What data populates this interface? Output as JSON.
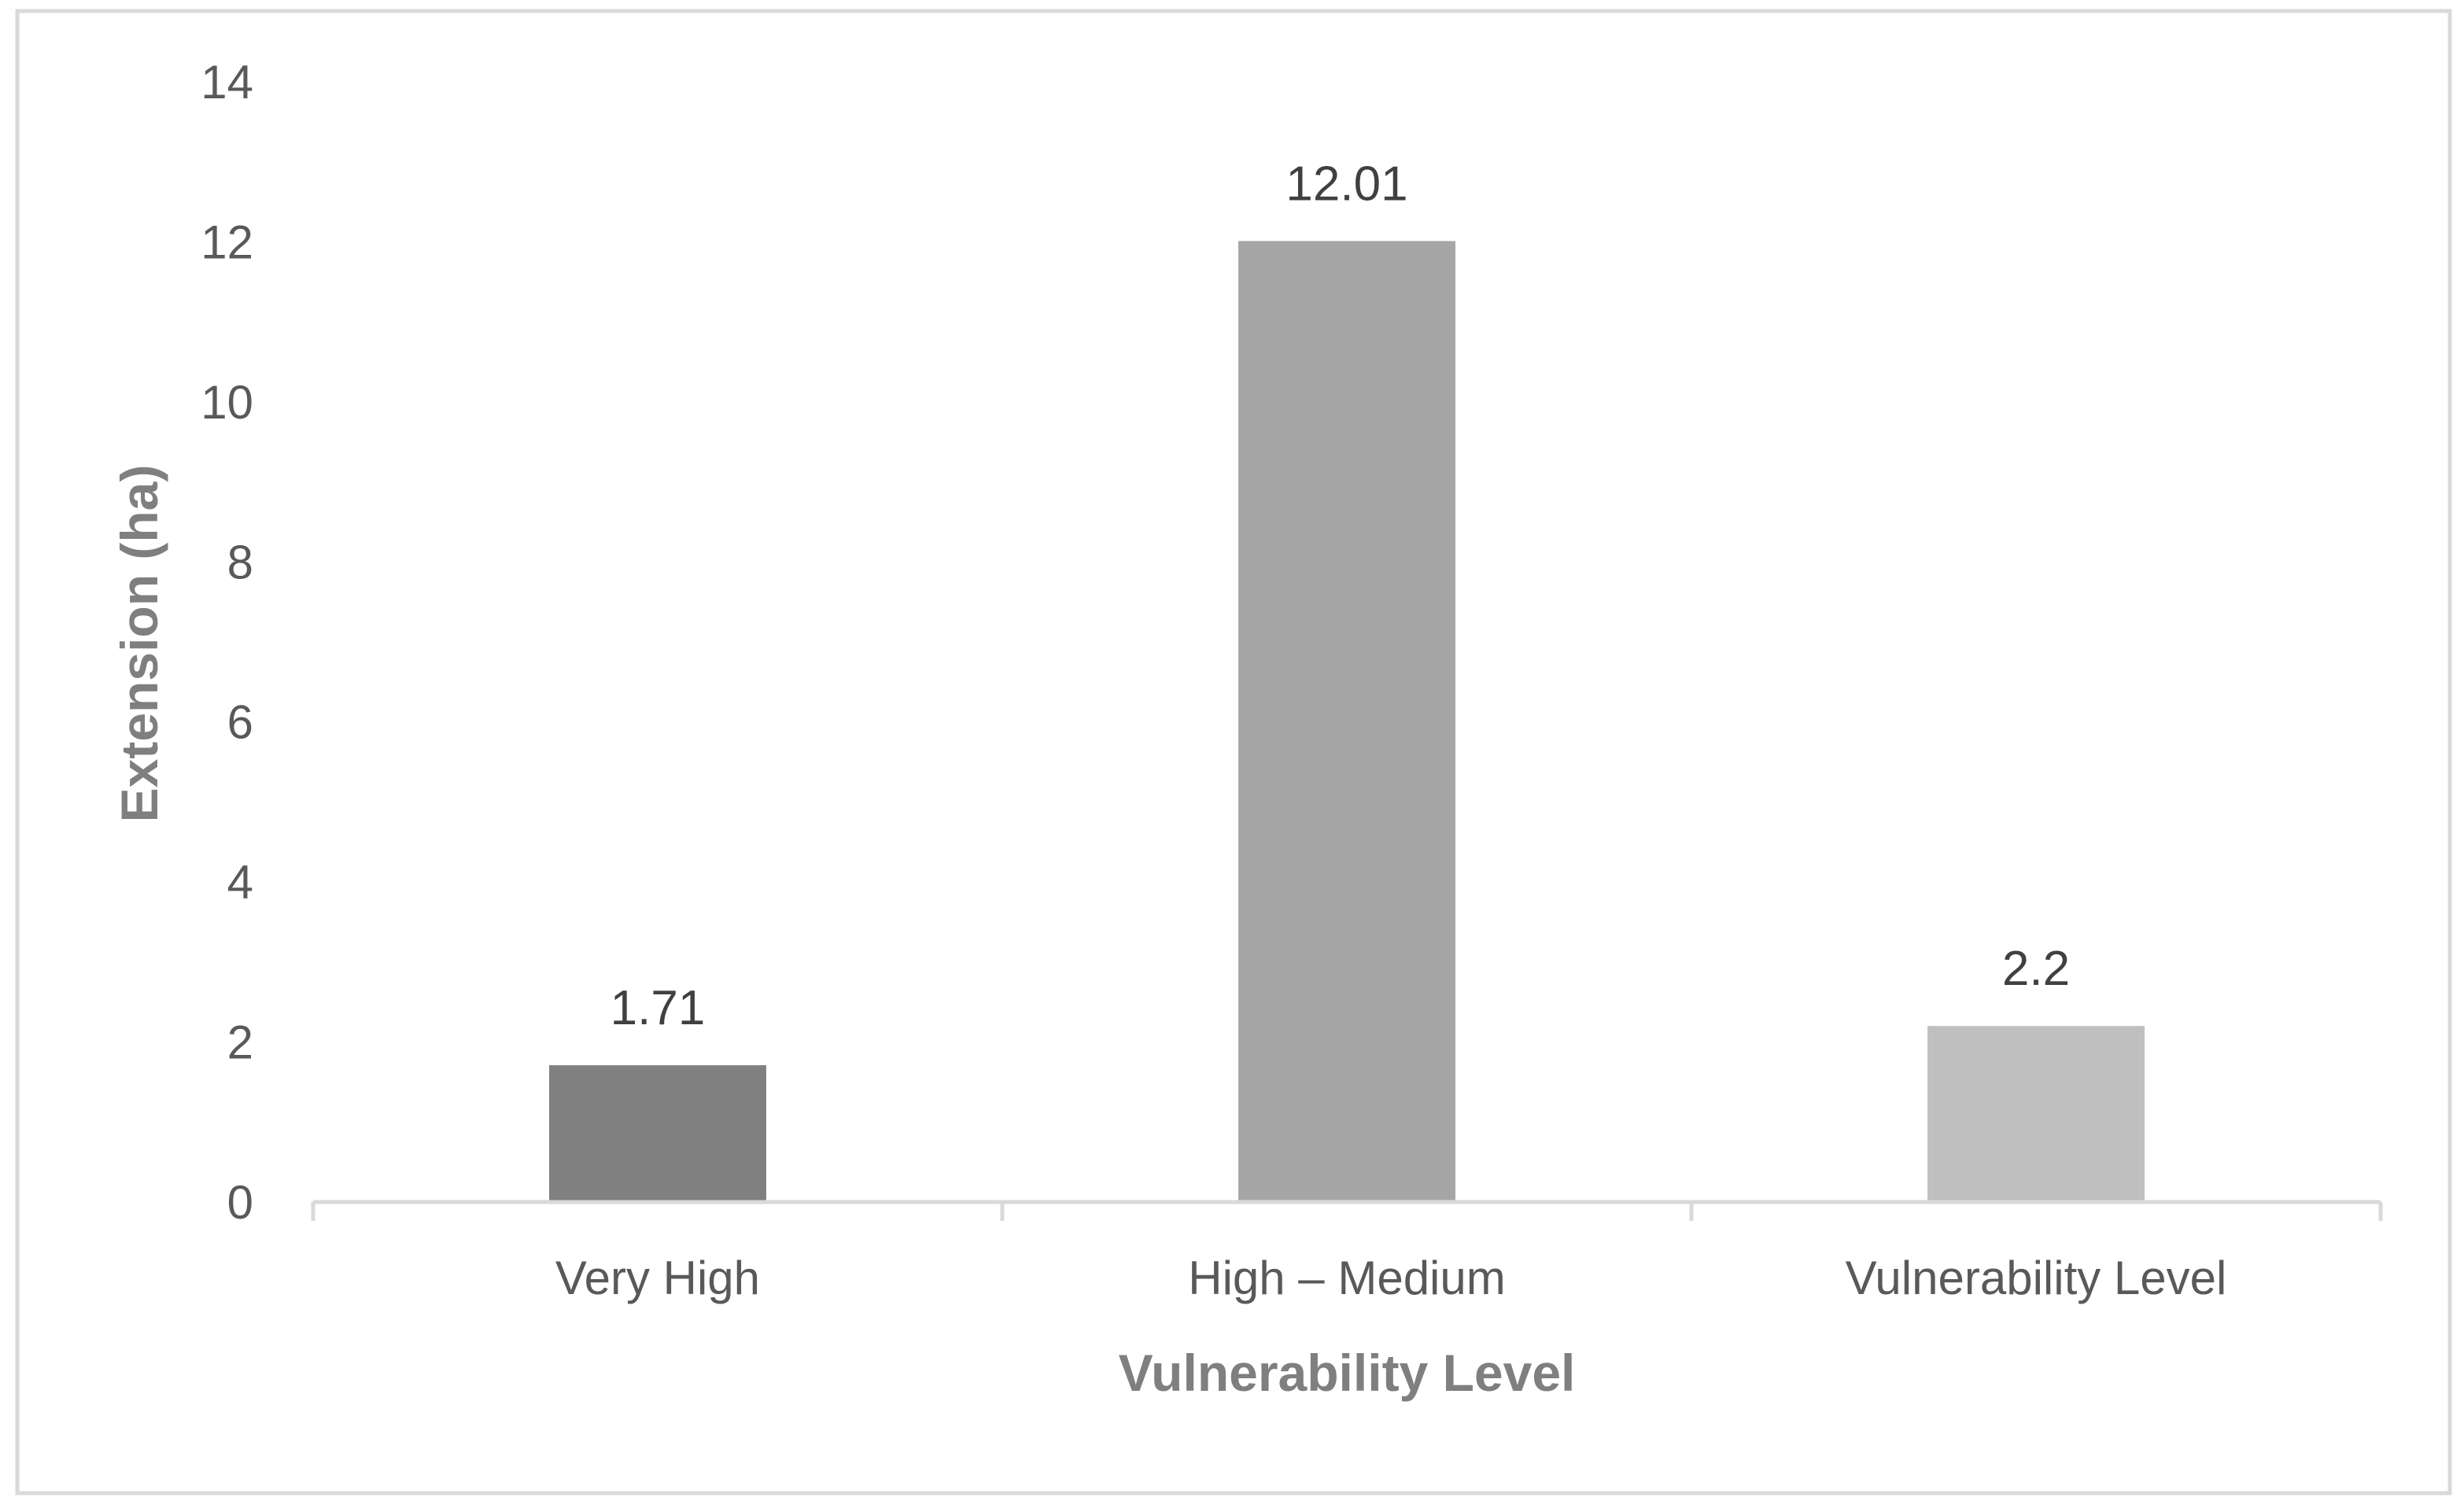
{
  "chart_data": {
    "type": "bar",
    "title": "",
    "xlabel": "Vulnerability Level",
    "ylabel": "Extension (ha)",
    "categories": [
      "Very High",
      "High – Medium",
      "Vulnerability Level"
    ],
    "values": [
      1.71,
      12.01,
      2.2
    ],
    "value_labels": [
      "1.71",
      "12.01",
      "2.2"
    ],
    "bar_colors": [
      "#808080",
      "#a6a6a6",
      "#bfbfbf"
    ],
    "ylim": [
      0,
      14
    ],
    "yticks": [
      0,
      2,
      4,
      6,
      8,
      10,
      12,
      14
    ],
    "grid": false,
    "legend": "none"
  },
  "colors": {
    "axis_line": "#d9d9d9",
    "frame_border": "#d9d9d9",
    "tick_text": "#595959",
    "data_label_text": "#404040",
    "axis_title_text": "#7f7f7f"
  }
}
